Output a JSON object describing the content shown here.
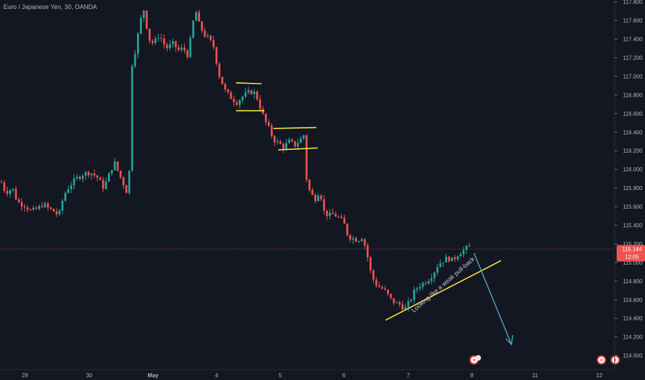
{
  "header": {
    "symbol_line": "Euro / Japanese Yen, 30, OANDA"
  },
  "price_axis": {
    "ticks": [
      "117.800",
      "117.600",
      "117.400",
      "117.200",
      "117.000",
      "116.800",
      "116.600",
      "116.400",
      "116.200",
      "116.000",
      "115.800",
      "115.600",
      "115.400",
      "115.200",
      "115.000",
      "114.800",
      "114.600",
      "114.400",
      "114.200",
      "114.000"
    ],
    "last_price": "115.144",
    "countdown": "12:05"
  },
  "time_axis": {
    "ticks": [
      "29",
      "30",
      "May",
      "4",
      "5",
      "6",
      "7",
      "8",
      "11",
      "12"
    ]
  },
  "colors": {
    "up": "#26a69a",
    "down": "#ef5350",
    "background": "#131722",
    "drawing_yellow": "#ffeb3b",
    "arrow": "#4a9bb0",
    "grid_text": "#b2b5be",
    "price_line": "#ef5350"
  },
  "annotation": {
    "text": "Looking like a weak pull-back"
  },
  "chart_data": {
    "type": "candlestick",
    "y_range": [
      113.96,
      117.82
    ],
    "path": [
      [
        0,
        115.9
      ],
      [
        8,
        115.75
      ],
      [
        18,
        115.8
      ],
      [
        25,
        115.65
      ],
      [
        35,
        115.62
      ],
      [
        45,
        115.55
      ],
      [
        55,
        115.58
      ],
      [
        62,
        115.63
      ],
      [
        70,
        115.58
      ],
      [
        78,
        115.55
      ],
      [
        85,
        115.5
      ],
      [
        92,
        115.72
      ],
      [
        100,
        115.82
      ],
      [
        110,
        115.9
      ],
      [
        120,
        115.95
      ],
      [
        130,
        115.97
      ],
      [
        140,
        115.92
      ],
      [
        150,
        115.8
      ],
      [
        158,
        115.95
      ],
      [
        165,
        116.08
      ],
      [
        172,
        115.95
      ],
      [
        180,
        115.82
      ],
      [
        186,
        115.7
      ],
      [
        190,
        117.1
      ],
      [
        196,
        117.3
      ],
      [
        203,
        117.6
      ],
      [
        208,
        117.72
      ],
      [
        215,
        117.4
      ],
      [
        222,
        117.35
      ],
      [
        230,
        117.45
      ],
      [
        240,
        117.3
      ],
      [
        250,
        117.35
      ],
      [
        258,
        117.28
      ],
      [
        265,
        117.3
      ],
      [
        272,
        117.22
      ],
      [
        278,
        117.55
      ],
      [
        283,
        117.7
      ],
      [
        288,
        117.55
      ],
      [
        295,
        117.45
      ],
      [
        302,
        117.4
      ],
      [
        310,
        117.3
      ],
      [
        315,
        117.05
      ],
      [
        320,
        116.95
      ],
      [
        325,
        116.85
      ],
      [
        330,
        116.8
      ],
      [
        337,
        116.75
      ],
      [
        342,
        116.72
      ],
      [
        350,
        116.78
      ],
      [
        358,
        116.82
      ],
      [
        366,
        116.84
      ],
      [
        372,
        116.76
      ],
      [
        378,
        116.62
      ],
      [
        383,
        116.52
      ],
      [
        388,
        116.45
      ],
      [
        393,
        116.36
      ],
      [
        398,
        116.3
      ],
      [
        403,
        116.28
      ],
      [
        410,
        116.24
      ],
      [
        418,
        116.3
      ],
      [
        426,
        116.26
      ],
      [
        434,
        116.32
      ],
      [
        440,
        116.38
      ],
      [
        443,
        115.9
      ],
      [
        448,
        115.75
      ],
      [
        455,
        115.68
      ],
      [
        462,
        115.78
      ],
      [
        468,
        115.55
      ],
      [
        475,
        115.5
      ],
      [
        482,
        115.52
      ],
      [
        490,
        115.48
      ],
      [
        497,
        115.42
      ],
      [
        503,
        115.28
      ],
      [
        510,
        115.26
      ],
      [
        517,
        115.24
      ],
      [
        524,
        115.28
      ],
      [
        530,
        115.1
      ],
      [
        537,
        114.85
      ],
      [
        545,
        114.75
      ],
      [
        552,
        114.72
      ],
      [
        558,
        114.68
      ],
      [
        565,
        114.6
      ],
      [
        572,
        114.56
      ],
      [
        578,
        114.55
      ],
      [
        585,
        114.5
      ],
      [
        592,
        114.58
      ],
      [
        598,
        114.68
      ],
      [
        605,
        114.75
      ],
      [
        612,
        114.78
      ],
      [
        619,
        114.82
      ],
      [
        626,
        114.88
      ],
      [
        633,
        114.98
      ],
      [
        640,
        115.02
      ],
      [
        647,
        115.05
      ],
      [
        654,
        115.02
      ],
      [
        660,
        115.08
      ],
      [
        667,
        115.12
      ],
      [
        674,
        115.15
      ],
      [
        679,
        115.17
      ]
    ]
  }
}
